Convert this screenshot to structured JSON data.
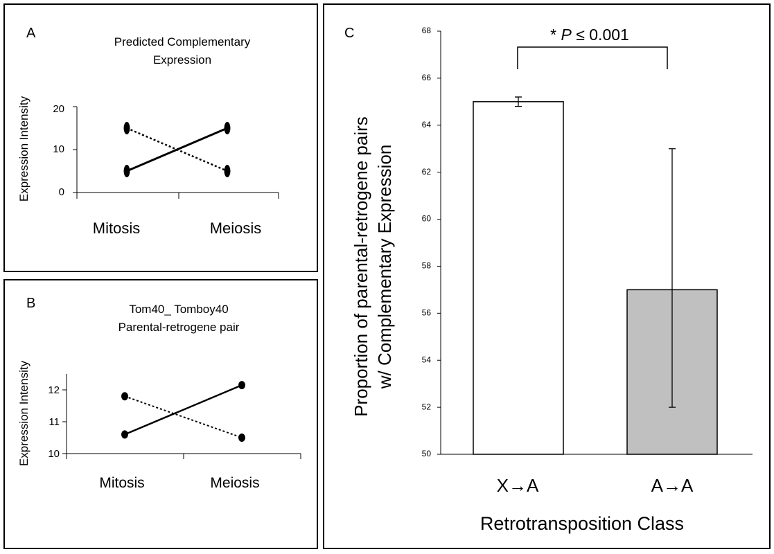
{
  "chart_data": [
    {
      "panel_label": "A",
      "type": "line",
      "title": "Predicted Complementary Expression",
      "title_lines": [
        "Predicted Complementary",
        "Expression"
      ],
      "ylabel": "Expression Intensity",
      "categories": [
        "Mitosis",
        "Meiosis"
      ],
      "yticks": [
        "0",
        "10",
        "20"
      ],
      "ylim": [
        0,
        20
      ],
      "series": [
        {
          "style": "solid",
          "values": [
            5,
            15
          ]
        },
        {
          "style": "dotted",
          "values": [
            15,
            5
          ]
        }
      ]
    },
    {
      "panel_label": "B",
      "type": "line",
      "title": "Tom40_ Tomboy40 Parental-retrogene pair",
      "title_lines": [
        "Tom40_ Tomboy40",
        "Parental-retrogene pair"
      ],
      "ylabel": "Expression Intensity",
      "categories": [
        "Mitosis",
        "Meiosis"
      ],
      "yticks": [
        "10",
        "11",
        "12"
      ],
      "ylim": [
        10,
        12.5
      ],
      "series": [
        {
          "style": "solid",
          "values": [
            10.6,
            12.15
          ]
        },
        {
          "style": "dotted",
          "values": [
            11.8,
            10.5
          ]
        }
      ]
    },
    {
      "panel_label": "C",
      "type": "bar",
      "categories": [
        "X→A",
        "A→A"
      ],
      "values": [
        65,
        57
      ],
      "error_low": [
        64.8,
        52
      ],
      "error_high": [
        65.2,
        63
      ],
      "bar_colors": [
        "#ffffff",
        "#c0c0c0"
      ],
      "ylabel_lines": [
        "Proportion of parental-retrogene pairs",
        "w/ Complementary Expression"
      ],
      "xlabel": "Retrotransposition Class",
      "yticks": [
        "50",
        "52",
        "54",
        "56",
        "58",
        "60",
        "62",
        "64",
        "66",
        "68"
      ],
      "ylim": [
        50,
        68
      ],
      "annotation": {
        "star": "* ",
        "p": "P",
        "rest": " ≤ 0.001"
      }
    }
  ]
}
